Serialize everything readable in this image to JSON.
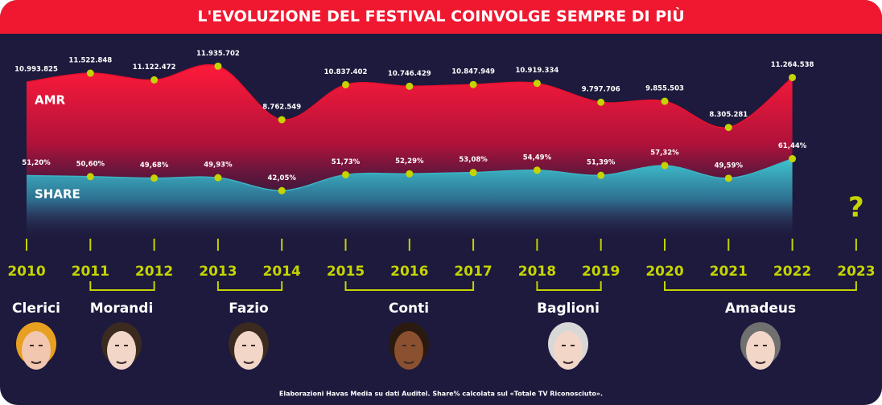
{
  "chart_data": {
    "type": "area",
    "title": "L'EVOLUZIONE DEL FESTIVAL COINVOLGE SEMPRE DI PIÙ",
    "categories": [
      "2010",
      "2011",
      "2012",
      "2013",
      "2014",
      "2015",
      "2016",
      "2017",
      "2018",
      "2019",
      "2020",
      "2021",
      "2022",
      "2023"
    ],
    "series": [
      {
        "name": "AMR",
        "color": "#e8102e",
        "values": [
          10993825,
          11522848,
          11122472,
          11935702,
          8762549,
          10837402,
          10746429,
          10847949,
          10919334,
          9797706,
          9855503,
          8305281,
          11264538,
          null
        ],
        "value_labels": [
          "10.993.825",
          "11.522.848",
          "11.122.472",
          "11.935.702",
          "8.762.549",
          "10.837.402",
          "10.746.429",
          "10.847.949",
          "10.919.334",
          "9.797.706",
          "9.855.503",
          "8.305.281",
          "11.264.538",
          null
        ],
        "ylim": [
          8000000,
          13000000
        ]
      },
      {
        "name": "SHARE",
        "color": "#3ab4c4",
        "values": [
          51.2,
          50.6,
          49.68,
          49.93,
          42.05,
          51.73,
          52.29,
          53.08,
          54.49,
          51.39,
          57.32,
          49.59,
          61.44,
          null
        ],
        "value_labels": [
          "51,20%",
          "50,60%",
          "49,68%",
          "49,93%",
          "42,05%",
          "51,73%",
          "52,29%",
          "53,08%",
          "54,49%",
          "51,39%",
          "57,32%",
          "49,59%",
          "61,44%",
          null
        ],
        "ylim": [
          30,
          70
        ]
      }
    ],
    "unknown_mark": "?",
    "hosts": [
      "Clerici",
      "Morandi",
      "Fazio",
      "Conti",
      "Baglioni",
      "Amadeus"
    ],
    "footnote": "Elaborazioni Havas Media su dati Auditel. Share% calcolata sul «Totale TV Riconosciuto»."
  }
}
